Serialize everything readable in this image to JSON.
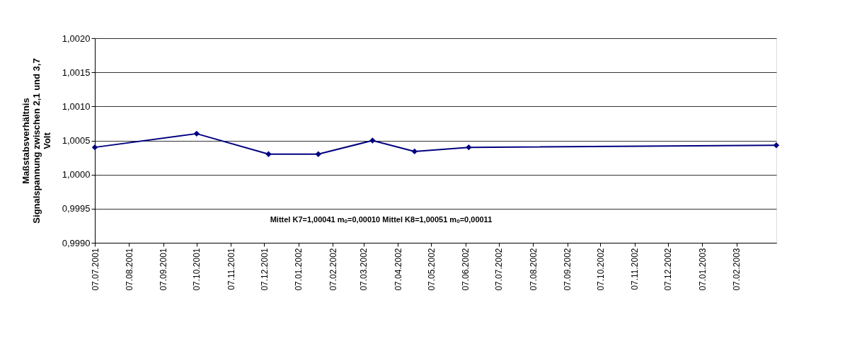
{
  "chart_data": {
    "type": "line",
    "ylabel": "Maßstabsverhältnis\nSignalspannung zwischen 2,1 und 3,7\nVolt",
    "x": [
      "2001-07-07",
      "2001-10-07",
      "2001-12-11",
      "2002-01-25",
      "2002-03-15",
      "2002-04-22",
      "2002-06-10",
      "2003-03-15"
    ],
    "series": [
      {
        "color": "#000080",
        "values": [
          1.0004,
          1.0006,
          1.0003,
          1.0003,
          1.0005,
          1.00034,
          1.0004,
          1.00043
        ]
      }
    ],
    "xlim": [
      "2001-07-07",
      "2003-03-15"
    ],
    "xticks": [
      {
        "value": "2001-07-07",
        "label": "07.07.2001"
      },
      {
        "value": "2001-08-07",
        "label": "07.08.2001"
      },
      {
        "value": "2001-09-07",
        "label": "07.09.2001"
      },
      {
        "value": "2001-10-07",
        "label": "07.10.2001"
      },
      {
        "value": "2001-11-07",
        "label": "07.11.2001"
      },
      {
        "value": "2001-12-07",
        "label": "07.12.2001"
      },
      {
        "value": "2002-01-07",
        "label": "07.01.2002"
      },
      {
        "value": "2002-02-07",
        "label": "07.02.2002"
      },
      {
        "value": "2002-03-07",
        "label": "07.03.2002"
      },
      {
        "value": "2002-04-07",
        "label": "07.04.2002"
      },
      {
        "value": "2002-05-07",
        "label": "07.05.2002"
      },
      {
        "value": "2002-06-07",
        "label": "07.06.2002"
      },
      {
        "value": "2002-07-07",
        "label": "07.07.2002"
      },
      {
        "value": "2002-08-07",
        "label": "07.08.2002"
      },
      {
        "value": "2002-09-07",
        "label": "07.09.2002"
      },
      {
        "value": "2002-10-07",
        "label": "07.10.2002"
      },
      {
        "value": "2002-11-07",
        "label": "07.11.2002"
      },
      {
        "value": "2002-12-07",
        "label": "07.12.2002"
      },
      {
        "value": "2003-01-07",
        "label": "07.01.2003"
      },
      {
        "value": "2003-02-07",
        "label": "07.02.2003"
      }
    ],
    "ylim": [
      0.999,
      1.002
    ],
    "yticks": [
      {
        "value": 0.999,
        "label": "0,9990"
      },
      {
        "value": 0.9995,
        "label": "0,9995"
      },
      {
        "value": 1.0,
        "label": "1,0000"
      },
      {
        "value": 1.0005,
        "label": "1,0005"
      },
      {
        "value": 1.001,
        "label": "1,0010"
      },
      {
        "value": 1.0015,
        "label": "1,0015"
      },
      {
        "value": 1.002,
        "label": "1,0020"
      }
    ],
    "grid": "y",
    "marker": "diamond",
    "line_style": "solid",
    "annotations": [
      "Mittel K7=1,00041   mₒ=0,00010       Mittel K8=1,00051   mₒ=0,00011"
    ]
  }
}
